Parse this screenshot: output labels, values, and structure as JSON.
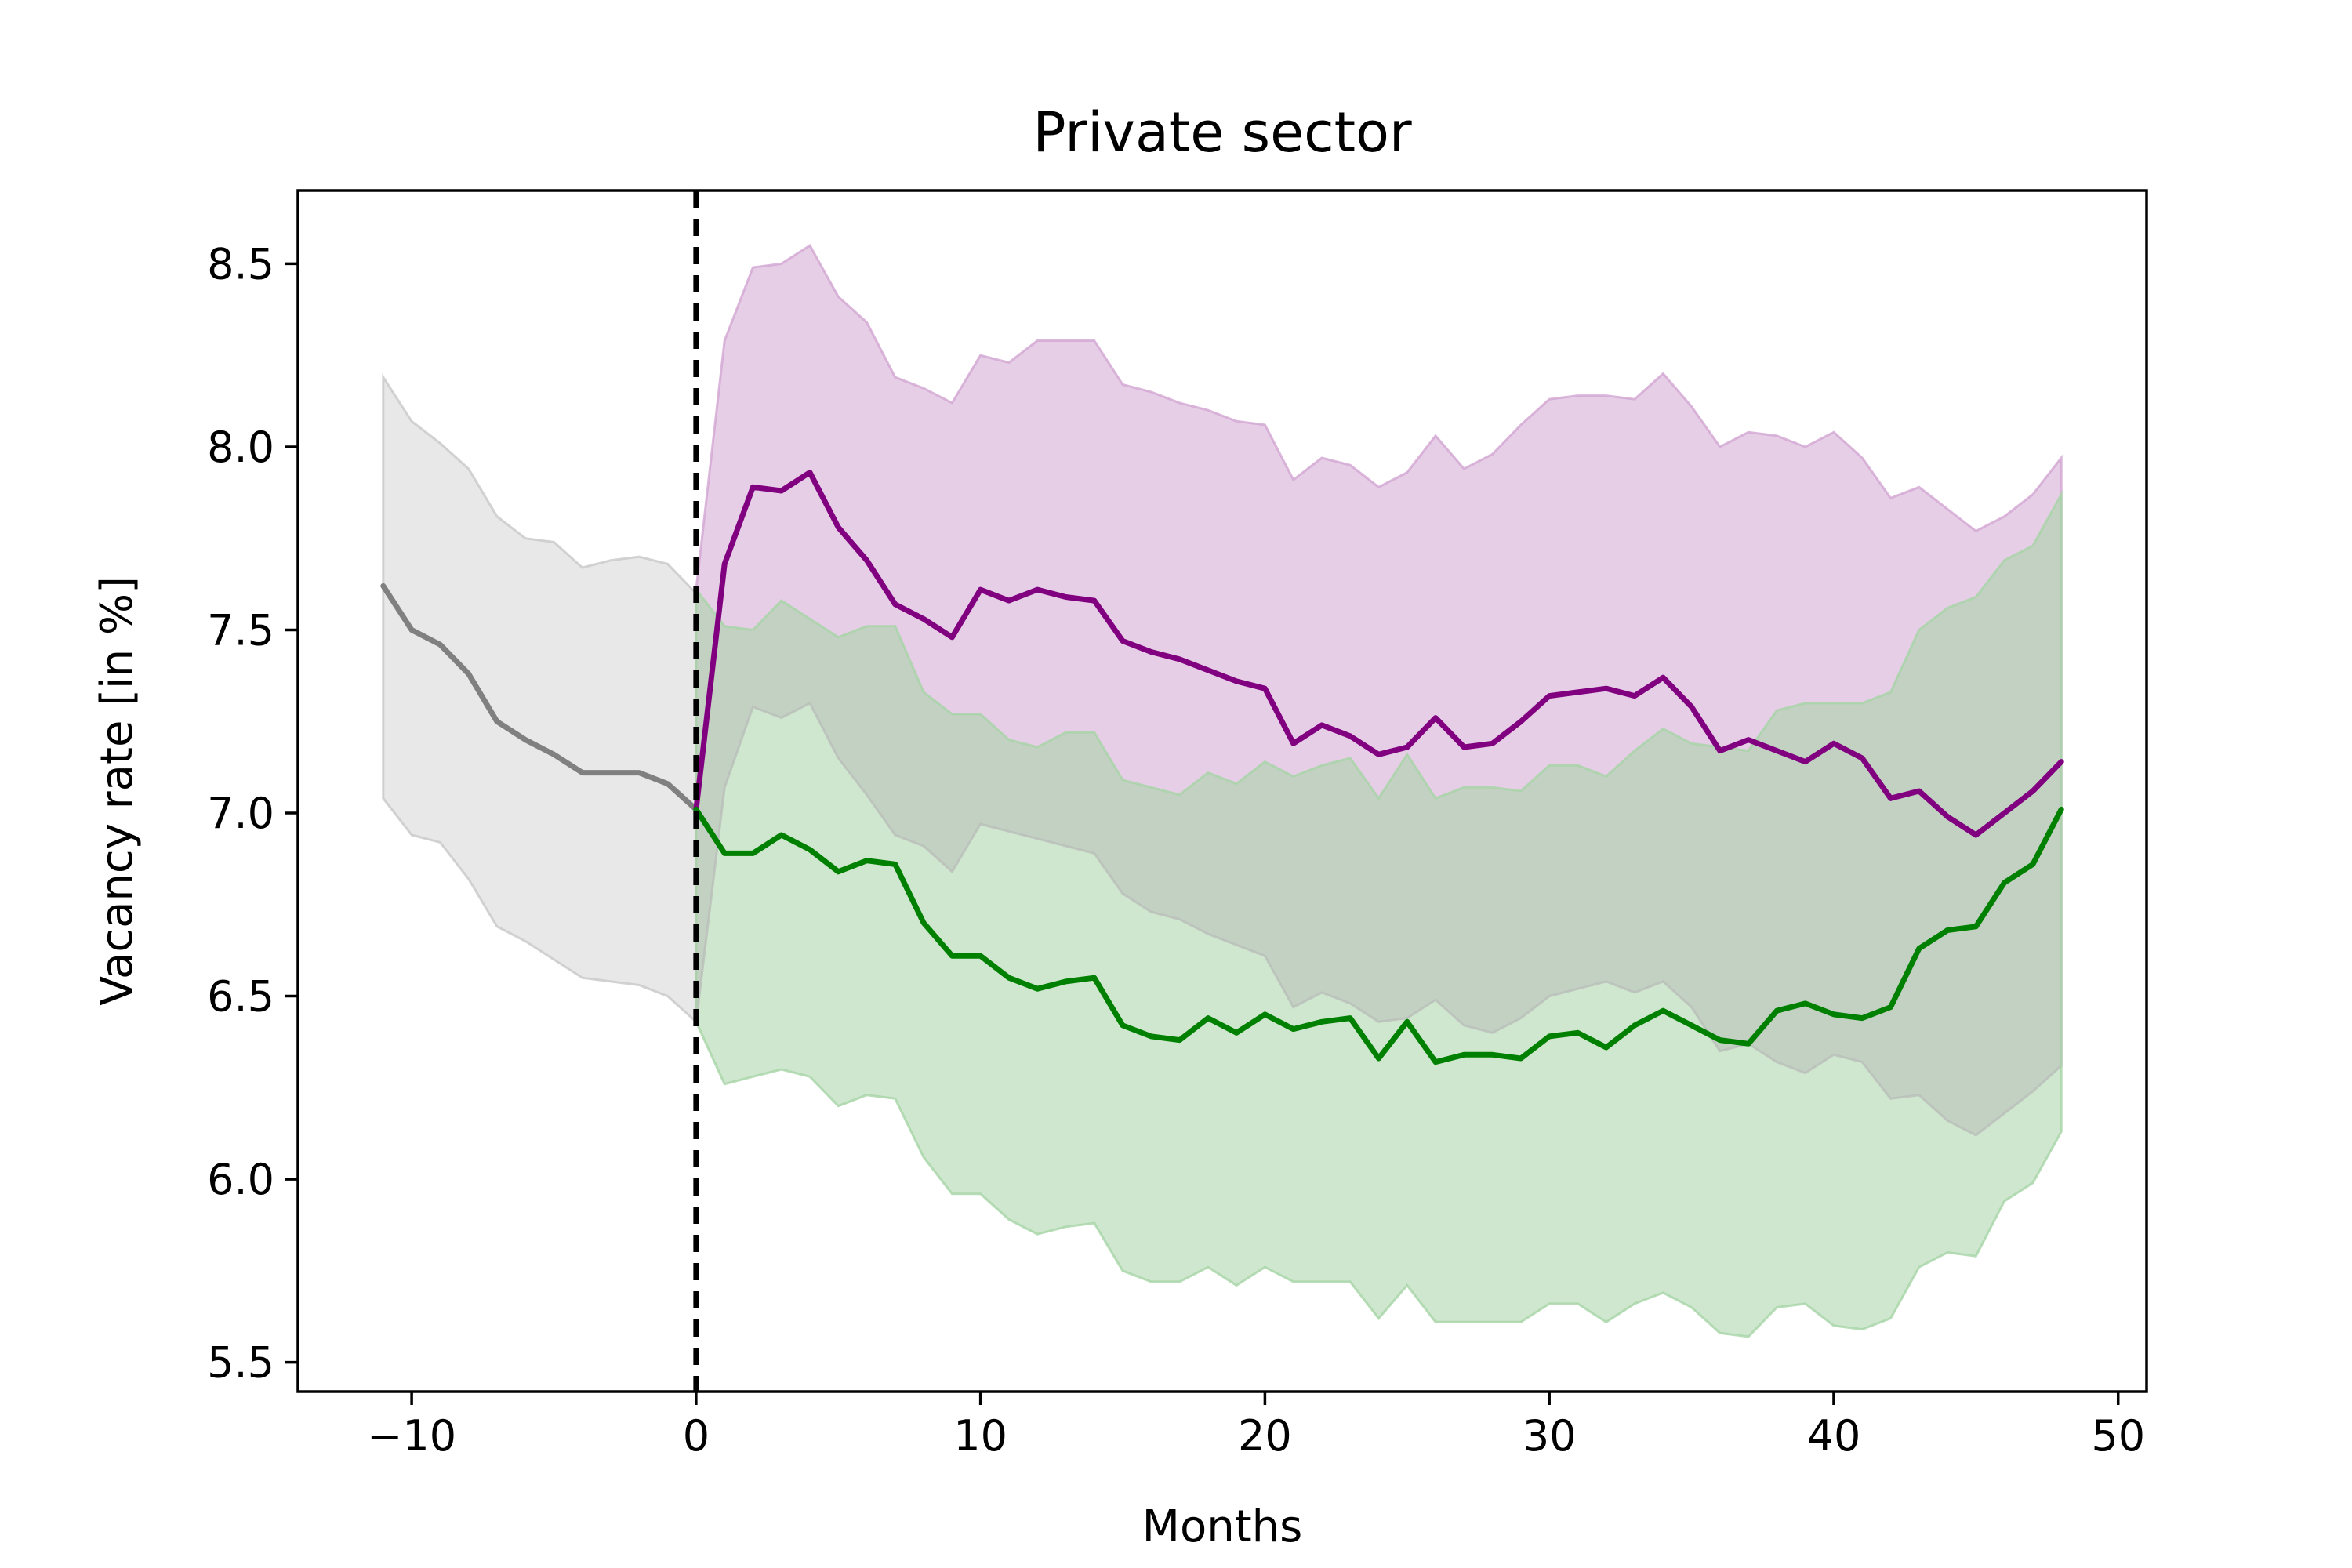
{
  "chart_data": {
    "type": "line",
    "title": "Private sector",
    "xlabel": "Months",
    "ylabel": "Vacancy rate [in %]",
    "xlim": [
      -14,
      51
    ],
    "ylim": [
      5.42,
      8.7
    ],
    "xticks": [
      -10,
      0,
      10,
      20,
      30,
      40,
      50
    ],
    "yticks": [
      5.5,
      6.0,
      6.5,
      7.0,
      7.5,
      8.0,
      8.5
    ],
    "xtick_labels": [
      "−10",
      "0",
      "10",
      "20",
      "30",
      "40",
      "50"
    ],
    "ytick_labels": [
      "5.5",
      "6.0",
      "6.5",
      "7.0",
      "7.5",
      "8.0",
      "8.5"
    ],
    "grid": false,
    "legend": "none",
    "event_line": {
      "x": 0,
      "style": "dashed",
      "color": "#000000"
    },
    "series": [
      {
        "color": "#808080",
        "band_color": "#c8c8c8",
        "x": [
          -11,
          -10,
          -9,
          -8,
          -7,
          -6,
          -5,
          -4,
          -3,
          -2,
          -1,
          0
        ],
        "y": [
          7.62,
          7.5,
          7.46,
          7.38,
          7.25,
          7.2,
          7.16,
          7.11,
          7.11,
          7.11,
          7.08,
          7.01
        ],
        "upper": [
          8.19,
          8.07,
          8.01,
          7.94,
          7.81,
          7.75,
          7.74,
          7.67,
          7.69,
          7.7,
          7.68,
          7.6
        ],
        "lower": [
          7.04,
          6.94,
          6.92,
          6.82,
          6.69,
          6.65,
          6.6,
          6.55,
          6.54,
          6.53,
          6.5,
          6.43
        ]
      },
      {
        "color": "#800080",
        "band_color": "#d2a5d2",
        "x": [
          0,
          1,
          2,
          3,
          4,
          5,
          6,
          7,
          8,
          9,
          10,
          11,
          12,
          13,
          14,
          15,
          16,
          17,
          18,
          19,
          20,
          21,
          22,
          23,
          24,
          25,
          26,
          27,
          28,
          29,
          30,
          31,
          32,
          33,
          34,
          35,
          36,
          37,
          38,
          39,
          40,
          41,
          42,
          43,
          44,
          45,
          46,
          47,
          48
        ],
        "y": [
          7.01,
          7.68,
          7.89,
          7.88,
          7.93,
          7.78,
          7.69,
          7.57,
          7.53,
          7.48,
          7.61,
          7.58,
          7.61,
          7.59,
          7.58,
          7.47,
          7.44,
          7.42,
          7.39,
          7.36,
          7.34,
          7.19,
          7.24,
          7.21,
          7.16,
          7.18,
          7.26,
          7.18,
          7.19,
          7.25,
          7.32,
          7.33,
          7.34,
          7.32,
          7.37,
          7.29,
          7.17,
          7.2,
          7.17,
          7.14,
          7.19,
          7.15,
          7.04,
          7.06,
          6.99,
          6.94,
          7.0,
          7.06,
          7.14
        ],
        "upper": [
          7.61,
          8.29,
          8.49,
          8.5,
          8.55,
          8.41,
          8.34,
          8.19,
          8.16,
          8.12,
          8.25,
          8.23,
          8.29,
          8.29,
          8.29,
          8.17,
          8.15,
          8.12,
          8.1,
          8.07,
          8.06,
          7.91,
          7.97,
          7.95,
          7.89,
          7.93,
          8.03,
          7.94,
          7.98,
          8.06,
          8.13,
          8.14,
          8.14,
          8.13,
          8.2,
          8.11,
          8.0,
          8.04,
          8.03,
          8.0,
          8.04,
          7.97,
          7.86,
          7.89,
          7.83,
          7.77,
          7.81,
          7.87,
          7.97
        ],
        "lower": [
          6.43,
          7.07,
          7.29,
          7.26,
          7.3,
          7.15,
          7.05,
          6.94,
          6.91,
          6.84,
          6.97,
          6.95,
          6.93,
          6.91,
          6.89,
          6.78,
          6.73,
          6.71,
          6.67,
          6.64,
          6.61,
          6.47,
          6.51,
          6.48,
          6.43,
          6.44,
          6.49,
          6.42,
          6.4,
          6.44,
          6.5,
          6.52,
          6.54,
          6.51,
          6.54,
          6.47,
          6.35,
          6.37,
          6.32,
          6.29,
          6.34,
          6.32,
          6.22,
          6.23,
          6.16,
          6.12,
          6.18,
          6.24,
          6.31
        ]
      },
      {
        "color": "#008000",
        "band_color": "#a6d4a6",
        "x": [
          0,
          1,
          2,
          3,
          4,
          5,
          6,
          7,
          8,
          9,
          10,
          11,
          12,
          13,
          14,
          15,
          16,
          17,
          18,
          19,
          20,
          21,
          22,
          23,
          24,
          25,
          26,
          27,
          28,
          29,
          30,
          31,
          32,
          33,
          34,
          35,
          36,
          37,
          38,
          39,
          40,
          41,
          42,
          43,
          44,
          45,
          46,
          47,
          48
        ],
        "y": [
          7.01,
          6.89,
          6.89,
          6.94,
          6.9,
          6.84,
          6.87,
          6.86,
          6.7,
          6.61,
          6.61,
          6.55,
          6.52,
          6.54,
          6.55,
          6.42,
          6.39,
          6.38,
          6.44,
          6.4,
          6.45,
          6.41,
          6.43,
          6.44,
          6.33,
          6.43,
          6.32,
          6.34,
          6.34,
          6.33,
          6.39,
          6.4,
          6.36,
          6.42,
          6.46,
          6.42,
          6.38,
          6.37,
          6.46,
          6.48,
          6.45,
          6.44,
          6.47,
          6.63,
          6.68,
          6.69,
          6.81,
          6.86,
          7.01
        ],
        "upper": [
          7.61,
          7.51,
          7.5,
          7.58,
          7.53,
          7.48,
          7.51,
          7.51,
          7.33,
          7.27,
          7.27,
          7.2,
          7.18,
          7.22,
          7.22,
          7.09,
          7.07,
          7.05,
          7.11,
          7.08,
          7.14,
          7.1,
          7.13,
          7.15,
          7.04,
          7.16,
          7.04,
          7.07,
          7.07,
          7.06,
          7.13,
          7.13,
          7.1,
          7.17,
          7.23,
          7.19,
          7.18,
          7.17,
          7.28,
          7.3,
          7.3,
          7.3,
          7.33,
          7.5,
          7.56,
          7.59,
          7.69,
          7.73,
          7.87
        ],
        "lower": [
          6.43,
          6.26,
          6.28,
          6.3,
          6.28,
          6.2,
          6.23,
          6.22,
          6.06,
          5.96,
          5.96,
          5.89,
          5.85,
          5.87,
          5.88,
          5.75,
          5.72,
          5.72,
          5.76,
          5.71,
          5.76,
          5.72,
          5.72,
          5.72,
          5.62,
          5.71,
          5.61,
          5.61,
          5.61,
          5.61,
          5.66,
          5.66,
          5.61,
          5.66,
          5.69,
          5.65,
          5.58,
          5.57,
          5.65,
          5.66,
          5.6,
          5.59,
          5.62,
          5.76,
          5.8,
          5.79,
          5.94,
          5.99,
          6.13
        ]
      }
    ]
  }
}
